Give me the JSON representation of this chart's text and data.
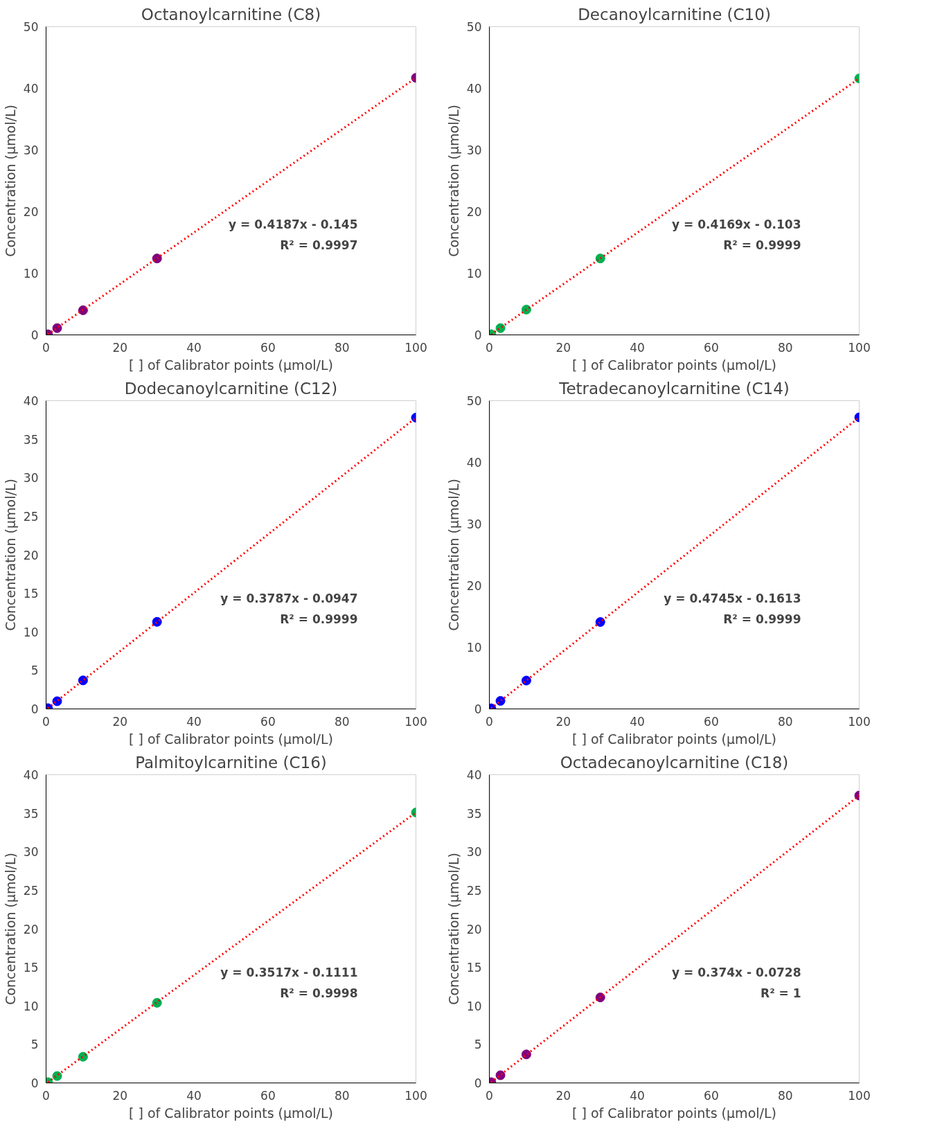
{
  "chart_data": [
    {
      "type": "scatter",
      "title": "Octanoylcarnitine (C8)",
      "xlabel": "[ ] of Calibrator points (µmol/L)",
      "ylabel": "Concentration (µmol/L)",
      "xlim": [
        0,
        100
      ],
      "xticks": [
        0,
        20,
        40,
        60,
        80,
        100
      ],
      "ylim": [
        0,
        50
      ],
      "yticks": [
        0,
        10,
        20,
        30,
        40,
        50
      ],
      "grid": false,
      "marker": "circle",
      "series": [
        {
          "color": "#7f007f",
          "x": [
            0.5,
            3,
            10,
            30,
            100
          ],
          "values": [
            0.1,
            1.1,
            4.0,
            12.4,
            41.7
          ]
        },
        {
          "type": "line",
          "color": "#ff0000",
          "line_style": "dotted",
          "marker": "none",
          "x": [
            0.5,
            100
          ],
          "values": [
            0.1,
            41.7
          ]
        }
      ],
      "annotations": [
        "y = 0.4187x - 0.145",
        "R² = 0.9997"
      ]
    },
    {
      "type": "scatter",
      "title": "Decanoylcarnitine (C10)",
      "xlabel": "[ ] of Calibrator points (µmol/L)",
      "ylabel": "Concentration (µmol/L)",
      "xlim": [
        0,
        100
      ],
      "xticks": [
        0,
        20,
        40,
        60,
        80,
        100
      ],
      "ylim": [
        0,
        50
      ],
      "yticks": [
        0,
        10,
        20,
        30,
        40,
        50
      ],
      "grid": false,
      "marker": "circle",
      "series": [
        {
          "color": "#00b050",
          "x": [
            0.5,
            3,
            10,
            30,
            100
          ],
          "values": [
            0.1,
            1.1,
            4.1,
            12.4,
            41.6
          ]
        },
        {
          "type": "line",
          "color": "#ff0000",
          "line_style": "dotted",
          "marker": "none",
          "x": [
            0.5,
            100
          ],
          "values": [
            0.1,
            41.6
          ]
        }
      ],
      "annotations": [
        "y = 0.4169x - 0.103",
        "R² = 0.9999"
      ]
    },
    {
      "type": "scatter",
      "title": "Dodecanoylcarnitine (C12)",
      "xlabel": "[ ] of Calibrator points (µmol/L)",
      "ylabel": "Concentration (µmol/L)",
      "xlim": [
        0,
        100
      ],
      "xticks": [
        0,
        20,
        40,
        60,
        80,
        100
      ],
      "ylim": [
        0,
        40
      ],
      "yticks": [
        0,
        5,
        10,
        15,
        20,
        25,
        30,
        35,
        40
      ],
      "grid": false,
      "marker": "circle",
      "series": [
        {
          "color": "#0000ff",
          "x": [
            0.5,
            3,
            10,
            30,
            100
          ],
          "values": [
            0.1,
            1.0,
            3.7,
            11.3,
            37.8
          ]
        },
        {
          "type": "line",
          "color": "#ff0000",
          "line_style": "dotted",
          "marker": "none",
          "x": [
            0.5,
            100
          ],
          "values": [
            0.1,
            37.8
          ]
        }
      ],
      "annotations": [
        "y = 0.3787x - 0.0947",
        "R² = 0.9999"
      ]
    },
    {
      "type": "scatter",
      "title": "Tetradecanoylcarnitine (C14)",
      "xlabel": "[ ] of Calibrator points (µmol/L)",
      "ylabel": "Concentration (µmol/L)",
      "xlim": [
        0,
        100
      ],
      "xticks": [
        0,
        20,
        40,
        60,
        80,
        100
      ],
      "ylim": [
        0,
        50
      ],
      "yticks": [
        0,
        10,
        20,
        30,
        40,
        50
      ],
      "grid": false,
      "marker": "circle",
      "series": [
        {
          "color": "#0000ff",
          "x": [
            0.5,
            3,
            10,
            30,
            100
          ],
          "values": [
            0.1,
            1.3,
            4.6,
            14.1,
            47.3
          ]
        },
        {
          "type": "line",
          "color": "#ff0000",
          "line_style": "dotted",
          "marker": "none",
          "x": [
            0.5,
            100
          ],
          "values": [
            0.1,
            47.3
          ]
        }
      ],
      "annotations": [
        "y = 0.4745x - 0.1613",
        "R² = 0.9999"
      ]
    },
    {
      "type": "scatter",
      "title": "Palmitoylcarnitine (C16)",
      "xlabel": "[ ] of Calibrator points (µmol/L)",
      "ylabel": "Concentration (µmol/L)",
      "xlim": [
        0,
        100
      ],
      "xticks": [
        0,
        20,
        40,
        60,
        80,
        100
      ],
      "ylim": [
        0,
        40
      ],
      "yticks": [
        0,
        5,
        10,
        15,
        20,
        25,
        30,
        35,
        40
      ],
      "grid": false,
      "marker": "circle",
      "series": [
        {
          "color": "#00b050",
          "x": [
            0.5,
            3,
            10,
            30,
            100
          ],
          "values": [
            0.1,
            0.9,
            3.4,
            10.4,
            35.1
          ]
        },
        {
          "type": "line",
          "color": "#ff0000",
          "line_style": "dotted",
          "marker": "none",
          "x": [
            0.5,
            100
          ],
          "values": [
            0.1,
            35.1
          ]
        }
      ],
      "annotations": [
        "y = 0.3517x - 0.1111",
        "R² = 0.9998"
      ]
    },
    {
      "type": "scatter",
      "title": "Octadecanoylcarnitine (C18)",
      "xlabel": "[ ] of Calibrator points (µmol/L)",
      "ylabel": "Concentration (µmol/L)",
      "xlim": [
        0,
        100
      ],
      "xticks": [
        0,
        20,
        40,
        60,
        80,
        100
      ],
      "ylim": [
        0,
        40
      ],
      "yticks": [
        0,
        5,
        10,
        15,
        20,
        25,
        30,
        35,
        40
      ],
      "grid": false,
      "marker": "circle",
      "series": [
        {
          "color": "#7f007f",
          "x": [
            0.5,
            3,
            10,
            30,
            100
          ],
          "values": [
            0.1,
            1.0,
            3.7,
            11.1,
            37.3
          ]
        },
        {
          "type": "line",
          "color": "#ff0000",
          "line_style": "dotted",
          "marker": "none",
          "x": [
            0.5,
            100
          ],
          "values": [
            0.1,
            37.3
          ]
        }
      ],
      "annotations": [
        "y = 0.374x - 0.0728",
        "R² = 1"
      ]
    }
  ]
}
